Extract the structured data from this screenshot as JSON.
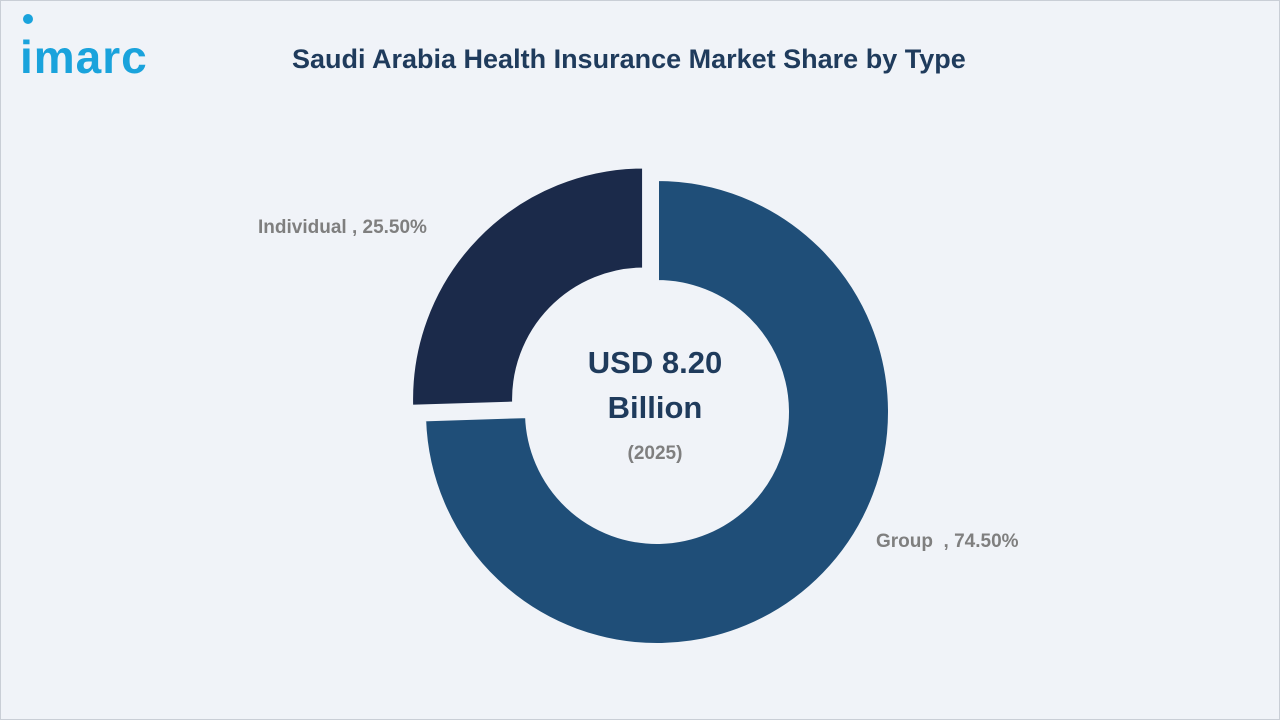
{
  "logo": {
    "text": "imarc"
  },
  "chart_data": {
    "type": "pie",
    "title": "Saudi Arabia Health Insurance Market Share by Type",
    "slices": [
      {
        "label": "Individual",
        "value": 25.5,
        "display": "Individual , 25.50%",
        "color": "#1b2a4a"
      },
      {
        "label": "Group",
        "value": 74.5,
        "display": "Group  , 74.50%",
        "color": "#1f4e78"
      }
    ],
    "center": {
      "line1": "USD 8.20",
      "line2": "Billion",
      "line3": "(2025)"
    },
    "colors": {
      "title": "#1f3b5c",
      "label": "#7f7f7f",
      "center_text": "#1f3b5c",
      "center_sub": "#7f7f7f",
      "logo": "#1aa3dc"
    }
  }
}
